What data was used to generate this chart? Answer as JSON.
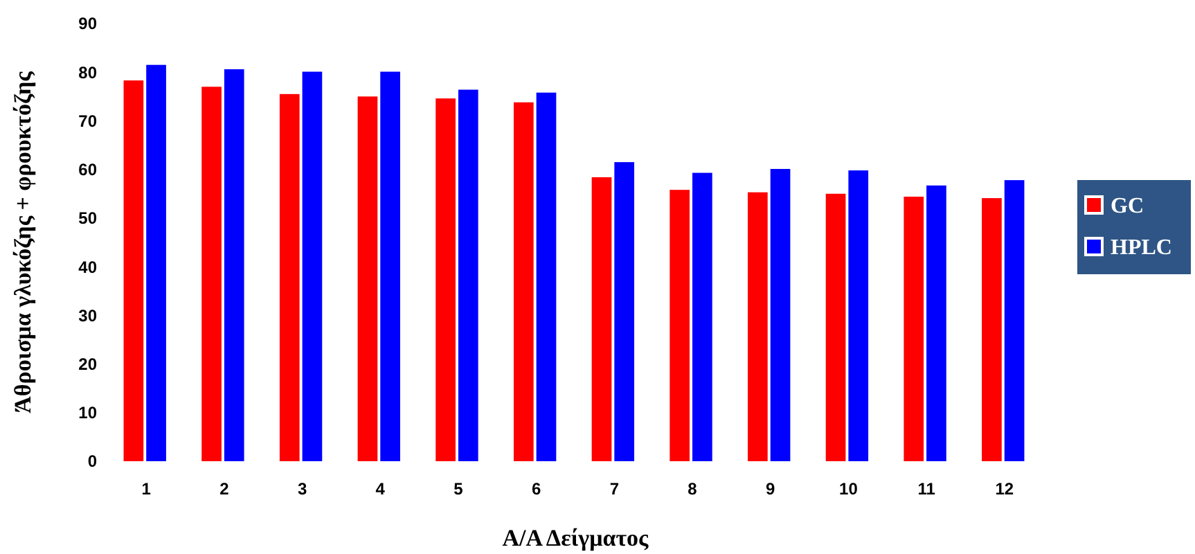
{
  "chart_data": {
    "type": "bar",
    "xlabel": "Α/Α Δείγματος",
    "ylabel": "Άθροισμα γλυκόζης + φρουκτόζης",
    "categories": [
      "1",
      "2",
      "3",
      "4",
      "5",
      "6",
      "7",
      "8",
      "9",
      "10",
      "11",
      "12"
    ],
    "series": [
      {
        "name": "GC",
        "color": "#ff0000",
        "values": [
          78.3,
          77,
          75.5,
          75,
          74.6,
          73.8,
          58.4,
          55.8,
          55.3,
          55,
          54.4,
          54.1
        ]
      },
      {
        "name": "HPLC",
        "color": "#0000ff",
        "values": [
          81.5,
          80.6,
          80.1,
          80.1,
          76.4,
          75.8,
          61.5,
          59.3,
          60.1,
          59.8,
          56.7,
          57.8
        ]
      }
    ],
    "ylim": [
      0,
      90
    ],
    "yticks": [
      0,
      10,
      20,
      30,
      40,
      50,
      60,
      70,
      80,
      90
    ],
    "grid": false,
    "legend": "right"
  }
}
